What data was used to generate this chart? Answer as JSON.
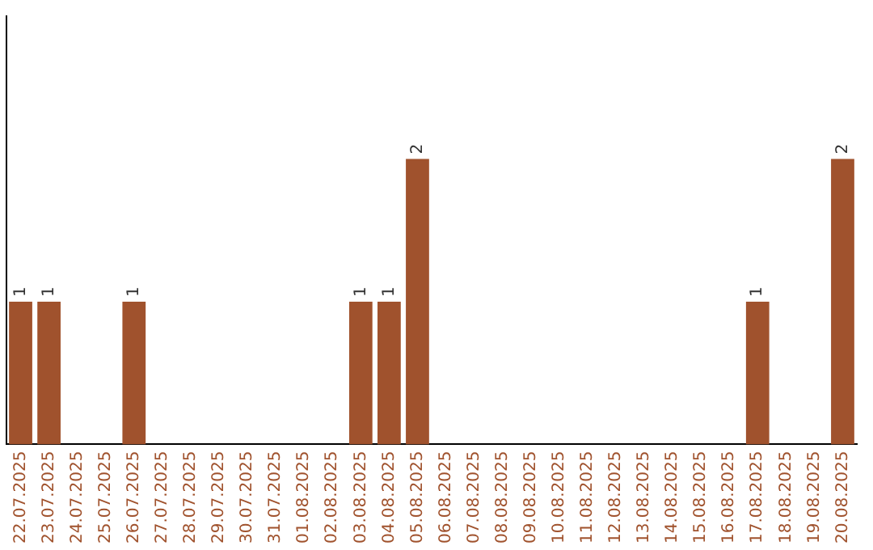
{
  "chart_data": {
    "type": "bar",
    "categories": [
      "22.07.2025",
      "23.07.2025",
      "24.07.2025",
      "25.07.2025",
      "26.07.2025",
      "27.07.2025",
      "28.07.2025",
      "29.07.2025",
      "30.07.2025",
      "31.07.2025",
      "01.08.2025",
      "02.08.2025",
      "03.08.2025",
      "04.08.2025",
      "05.08.2025",
      "06.08.2025",
      "07.08.2025",
      "08.08.2025",
      "09.08.2025",
      "10.08.2025",
      "11.08.2025",
      "12.08.2025",
      "13.08.2025",
      "14.08.2025",
      "15.08.2025",
      "16.08.2025",
      "17.08.2025",
      "18.08.2025",
      "19.08.2025",
      "20.08.2025"
    ],
    "values": [
      1,
      1,
      0,
      0,
      1,
      0,
      0,
      0,
      0,
      0,
      0,
      0,
      1,
      1,
      2,
      0,
      0,
      0,
      0,
      0,
      0,
      0,
      0,
      0,
      0,
      0,
      1,
      0,
      0,
      2
    ],
    "value_labels": [
      "1",
      "1",
      null,
      null,
      "1",
      null,
      null,
      null,
      null,
      null,
      null,
      null,
      "1",
      "1",
      "2",
      null,
      null,
      null,
      null,
      null,
      null,
      null,
      null,
      null,
      null,
      null,
      "1",
      null,
      null,
      "2"
    ],
    "color": "#a0522d",
    "tick_labels": "x",
    "grid": false,
    "legend": false
  }
}
